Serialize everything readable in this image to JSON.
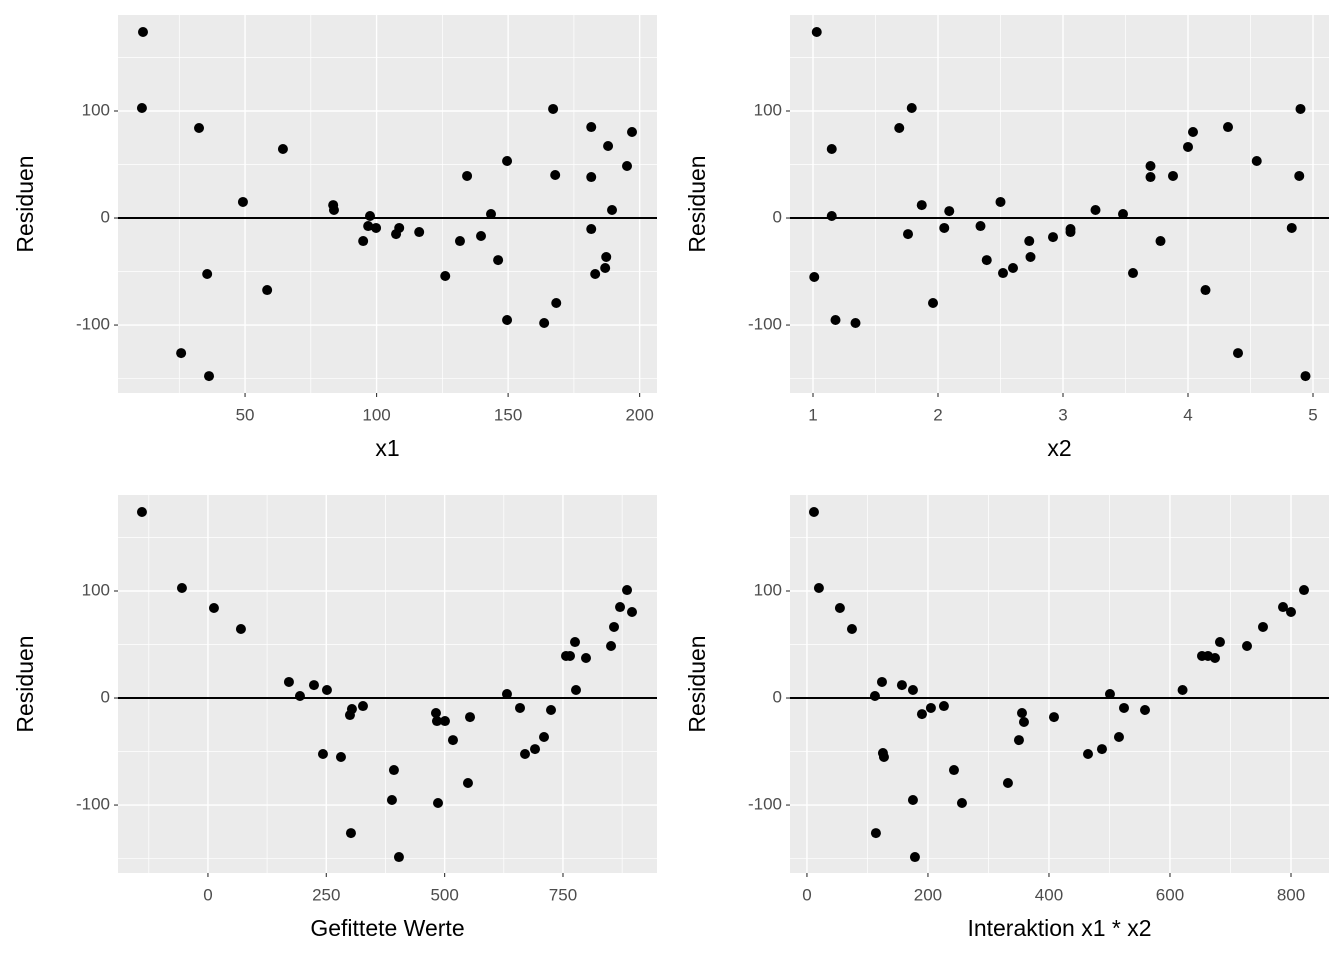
{
  "chart_data": [
    {
      "type": "scatter",
      "xlabel": "x1",
      "ylabel": "Residuen",
      "hline": 0,
      "color": "#000000",
      "xlim": [
        1.7,
        206.6
      ],
      "ylim": [
        -163.5,
        189.7
      ],
      "xticks": [
        50,
        100,
        150,
        200
      ],
      "yticks": [
        -100,
        0,
        100
      ],
      "xminor": [
        25,
        75,
        125,
        175
      ],
      "yminor": [
        -150,
        -50,
        50,
        150
      ],
      "grid": true,
      "x": [
        11.2,
        10.8,
        25.7,
        32.5,
        35.6,
        36.3,
        49.2,
        58.4,
        64.4,
        83.5,
        83.8,
        94.9,
        97.5,
        96.8,
        99.8,
        107.4,
        108.6,
        116.2,
        126.1,
        131.7,
        134.4,
        139.7,
        143.5,
        146.2,
        149.6,
        149.6,
        163.7,
        167.1,
        167.9,
        168.3,
        181.6,
        181.6,
        181.6,
        183.1,
        186.9,
        187.3,
        188,
        189.5,
        195.2,
        197.1
      ],
      "values": [
        173.8,
        102.8,
        -126.2,
        84.1,
        -52.3,
        -147.7,
        15,
        -67.3,
        64.5,
        12.1,
        7.5,
        -21.5,
        1.9,
        -7.5,
        -9.3,
        -15,
        -9.3,
        -13.1,
        -54.2,
        -21.5,
        39.3,
        -16.8,
        3.7,
        -39.3,
        53.3,
        -95.3,
        -98.1,
        101.9,
        40.2,
        -79.4,
        85,
        38.3,
        -10.3,
        -52.3,
        -46.7,
        -36.4,
        67.3,
        7.5,
        48.6,
        80.4
      ]
    },
    {
      "type": "scatter",
      "xlabel": "x2",
      "ylabel": "Residuen",
      "hline": 0,
      "color": "#000000",
      "xlim": [
        0.816,
        5.128
      ],
      "ylim": [
        -163.5,
        189.7
      ],
      "xticks": [
        1,
        2,
        3,
        4,
        5
      ],
      "yticks": [
        -100,
        0,
        100
      ],
      "xminor": [
        1.5,
        2.5,
        3.5,
        4.5
      ],
      "yminor": [
        -150,
        -50,
        50,
        150
      ],
      "grid": true,
      "x": [
        1.03,
        1.01,
        1.15,
        1.15,
        1.18,
        1.34,
        1.69,
        1.76,
        1.79,
        1.87,
        1.96,
        2.05,
        2.09,
        2.34,
        2.39,
        2.5,
        2.52,
        2.6,
        2.73,
        2.74,
        2.92,
        3.06,
        3.06,
        3.26,
        3.48,
        3.56,
        3.7,
        3.7,
        3.78,
        3.88,
        4.0,
        4.04,
        4.14,
        4.32,
        4.4,
        4.55,
        4.83,
        4.89,
        4.9,
        4.94
      ],
      "values": [
        173.8,
        -55.1,
        64.5,
        1.9,
        -95.3,
        -98.1,
        84.1,
        -15,
        102.8,
        12.1,
        -79.4,
        -9.3,
        6.5,
        -7.5,
        -39.3,
        15,
        -51.4,
        -46.7,
        -21.5,
        -36.4,
        -17.8,
        -10.3,
        -13.1,
        7.5,
        3.7,
        -51.4,
        48.6,
        38.3,
        -21.5,
        39.3,
        66.4,
        80.4,
        -67.3,
        85,
        -126.2,
        53.3,
        -9.3,
        39.3,
        101.9,
        -147.7
      ]
    },
    {
      "type": "scatter",
      "xlabel": "Gefittete Werte",
      "ylabel": "Residuen",
      "hline": 0,
      "color": "#000000",
      "xlim": [
        -190,
        948.6
      ],
      "ylim": [
        -163.5,
        189.7
      ],
      "xticks": [
        0,
        250,
        500,
        750
      ],
      "yticks": [
        -100,
        0,
        100
      ],
      "xminor": [
        -125,
        125,
        375,
        625,
        875
      ],
      "yminor": [
        -150,
        -50,
        50,
        150
      ],
      "grid": true,
      "x": [
        -139.4,
        -54.9,
        12.7,
        69.7,
        171.1,
        194.4,
        224,
        251.4,
        243,
        281,
        302.1,
        300,
        304.2,
        327.5,
        388.7,
        392.9,
        403.5,
        481.7,
        483.8,
        500.7,
        486,
        517.6,
        549.3,
        553.6,
        631.7,
        659.2,
        669.8,
        690.9,
        709.9,
        724.7,
        756.4,
        764.8,
        775.4,
        777.5,
        798.6,
        851.5,
        857.8,
        870.5,
        885.3,
        895.8
      ],
      "values": [
        173.8,
        102.8,
        84.1,
        64.5,
        15,
        1.9,
        12.1,
        7.5,
        -52.3,
        -55.1,
        -126.2,
        -15.9,
        -10.3,
        -7.5,
        -95.3,
        -67.3,
        -148.6,
        -14,
        -21.5,
        -21.5,
        -98.1,
        -39.3,
        -79.4,
        -17.8,
        3.7,
        -9.3,
        -52.3,
        -47.7,
        -36.4,
        -11.2,
        39.3,
        39.3,
        52.3,
        7.5,
        37.4,
        48.6,
        66.4,
        85,
        100.9,
        80.4
      ]
    },
    {
      "type": "scatter",
      "xlabel": "Interaktion x1 * x2",
      "ylabel": "Residuen",
      "hline": 0,
      "color": "#000000",
      "xlim": [
        -28,
        862.8
      ],
      "ylim": [
        -163.5,
        189.7
      ],
      "xticks": [
        0,
        200,
        400,
        600,
        800
      ],
      "yticks": [
        -100,
        0,
        100
      ],
      "xminor": [
        100,
        300,
        500,
        700
      ],
      "yminor": [
        -150,
        -50,
        50,
        150
      ],
      "grid": true,
      "x": [
        11.6,
        19.8,
        54.5,
        74.4,
        112.4,
        114,
        124,
        125.6,
        127.3,
        157,
        175.2,
        175.2,
        178.5,
        190.1,
        204.9,
        226.4,
        243,
        256.2,
        332.2,
        350.4,
        355.4,
        358.7,
        408.3,
        464.5,
        487.6,
        500.8,
        515.7,
        524,
        558.7,
        620.8,
        652.9,
        662.8,
        674.4,
        682.6,
        727.3,
        753.7,
        786.8,
        800,
        821.5
      ],
      "values": [
        173.8,
        102.8,
        84.1,
        64.5,
        1.9,
        -126.2,
        15,
        -51.4,
        -55.1,
        12.1,
        7.5,
        -95.3,
        -148.6,
        -15,
        -9.3,
        -7.5,
        -67.3,
        -98.1,
        -79.4,
        -39.3,
        -14,
        -22.4,
        -17.8,
        -52.3,
        -47.7,
        3.7,
        -36.4,
        -9.3,
        -11.2,
        7.5,
        39.3,
        39.3,
        37.4,
        52.3,
        48.6,
        66.4,
        85,
        80.4,
        100.9
      ]
    }
  ]
}
